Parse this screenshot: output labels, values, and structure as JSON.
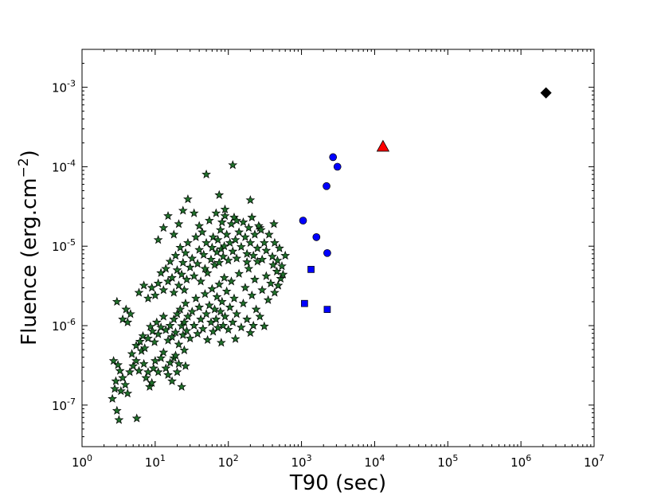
{
  "chart_data": {
    "type": "scatter",
    "title": "",
    "xlabel": "T90 (sec)",
    "ylabel": {
      "prefix": "Fluence (erg.cm",
      "sup": "−2",
      "suffix": ")"
    },
    "xscale": "log",
    "yscale": "log",
    "xlim": [
      1,
      10000000
    ],
    "ylim": [
      3e-08,
      0.003
    ],
    "grid": false,
    "legend": "none",
    "x_ticks": [
      {
        "base": "10",
        "exp": "0",
        "value": 1
      },
      {
        "base": "10",
        "exp": "1",
        "value": 10
      },
      {
        "base": "10",
        "exp": "2",
        "value": 100
      },
      {
        "base": "10",
        "exp": "3",
        "value": 1000
      },
      {
        "base": "10",
        "exp": "4",
        "value": 10000
      },
      {
        "base": "10",
        "exp": "5",
        "value": 100000
      },
      {
        "base": "10",
        "exp": "6",
        "value": 1000000
      },
      {
        "base": "10",
        "exp": "7",
        "value": 10000000
      }
    ],
    "y_ticks": [
      {
        "base": "10",
        "exp": "-7",
        "value": 1e-07
      },
      {
        "base": "10",
        "exp": "-6",
        "value": 1e-06
      },
      {
        "base": "10",
        "exp": "-5",
        "value": 1e-05
      },
      {
        "base": "10",
        "exp": "-4",
        "value": 0.0001
      },
      {
        "base": "10",
        "exp": "-3",
        "value": 0.001
      }
    ],
    "series": [
      {
        "marker": "star",
        "color": "#1f6f2a",
        "points": [
          [
            2.6,
            1.2e-07
          ],
          [
            2.8,
            1.6e-07
          ],
          [
            3.0,
            8.5e-08
          ],
          [
            3.2,
            6.5e-08
          ],
          [
            2.9,
            2e-07
          ],
          [
            3.1,
            3.2e-07
          ],
          [
            3.4,
            1.5e-07
          ],
          [
            3.6,
            2.2e-07
          ],
          [
            3.9,
            1.8e-07
          ],
          [
            4.2,
            1.4e-07
          ],
          [
            3.3,
            2.7e-07
          ],
          [
            2.7,
            3.6e-07
          ],
          [
            4.5,
            2.6e-07
          ],
          [
            5.0,
            3.1e-07
          ],
          [
            4.8,
            4.4e-07
          ],
          [
            5.5,
            3.6e-07
          ],
          [
            6.0,
            2.7e-07
          ],
          [
            5.6,
            6.8e-08
          ],
          [
            6.5,
            4.8e-07
          ],
          [
            7.0,
            3.3e-07
          ],
          [
            7.5,
            2.2e-07
          ],
          [
            8.0,
            2.6e-07
          ],
          [
            8.4,
            1.7e-07
          ],
          [
            9.0,
            1.9e-07
          ],
          [
            9.5,
            2.9e-07
          ],
          [
            10,
            3.6e-07
          ],
          [
            11,
            2.6e-07
          ],
          [
            12,
            3.9e-07
          ],
          [
            13,
            4.6e-07
          ],
          [
            14,
            2.9e-07
          ],
          [
            15,
            2.4e-07
          ],
          [
            16,
            3.4e-07
          ],
          [
            17,
            2e-07
          ],
          [
            18,
            3.9e-07
          ],
          [
            19,
            4.2e-07
          ],
          [
            20,
            2.6e-07
          ],
          [
            21,
            3.3e-07
          ],
          [
            23,
            1.7e-07
          ],
          [
            25,
            4.9e-07
          ],
          [
            26,
            3.1e-07
          ],
          [
            4.0,
            1.6e-06
          ],
          [
            4.6,
            1.4e-06
          ],
          [
            3.0,
            2e-06
          ],
          [
            3.6,
            1.2e-06
          ],
          [
            4.2,
            1.1e-06
          ],
          [
            5.5,
            5.6e-07
          ],
          [
            6.2,
            6.3e-07
          ],
          [
            6.8,
            7.4e-07
          ],
          [
            7.2,
            5.2e-07
          ],
          [
            8.0,
            6.9e-07
          ],
          [
            8.6,
            9.7e-07
          ],
          [
            9.2,
            8.5e-07
          ],
          [
            9.8,
            6.2e-07
          ],
          [
            10.5,
            1.1e-06
          ],
          [
            11,
            7.8e-07
          ],
          [
            12,
            9.5e-07
          ],
          [
            13,
            1.3e-06
          ],
          [
            14,
            8.8e-07
          ],
          [
            15,
            6.5e-07
          ],
          [
            16,
            1e-06
          ],
          [
            17,
            7.2e-07
          ],
          [
            18,
            1.2e-06
          ],
          [
            19,
            8.2e-07
          ],
          [
            20,
            1.4e-06
          ],
          [
            21,
            5.8e-07
          ],
          [
            22,
            1.6e-06
          ],
          [
            23,
            9.9e-07
          ],
          [
            24,
            7.6e-07
          ],
          [
            25,
            1.1e-06
          ],
          [
            26,
            1.9e-06
          ],
          [
            27,
            8.6e-07
          ],
          [
            28,
            1.3e-06
          ],
          [
            30,
            6.9e-07
          ],
          [
            32,
            1.5e-06
          ],
          [
            34,
            1e-06
          ],
          [
            36,
            2.2e-06
          ],
          [
            38,
            7.9e-07
          ],
          [
            40,
            1.7e-06
          ],
          [
            42,
            1.2e-06
          ],
          [
            45,
            9.1e-07
          ],
          [
            48,
            2.5e-06
          ],
          [
            50,
            1.4e-06
          ],
          [
            52,
            6.6e-07
          ],
          [
            55,
            1.8e-06
          ],
          [
            58,
            1.1e-06
          ],
          [
            60,
            2.9e-06
          ],
          [
            62,
            8.4e-07
          ],
          [
            65,
            1.6e-06
          ],
          [
            68,
            1.2e-06
          ],
          [
            70,
            2.3e-06
          ],
          [
            72,
            9.4e-07
          ],
          [
            75,
            3.3e-06
          ],
          [
            78,
            1.5e-06
          ],
          [
            80,
            6.1e-07
          ],
          [
            82,
            2e-06
          ],
          [
            85,
            1e-06
          ],
          [
            88,
            4e-06
          ],
          [
            90,
            1.3e-06
          ],
          [
            95,
            2.7e-06
          ],
          [
            100,
            8.9e-07
          ],
          [
            105,
            1.7e-06
          ],
          [
            110,
            3.6e-06
          ],
          [
            115,
            1.1e-06
          ],
          [
            120,
            2.2e-06
          ],
          [
            125,
            6.8e-07
          ],
          [
            130,
            1.4e-06
          ],
          [
            140,
            4.5e-06
          ],
          [
            150,
            9.5e-07
          ],
          [
            160,
            1.9e-06
          ],
          [
            170,
            3e-06
          ],
          [
            180,
            1.2e-06
          ],
          [
            190,
            5.2e-06
          ],
          [
            200,
            8.1e-07
          ],
          [
            210,
            2.4e-06
          ],
          [
            220,
            1e-06
          ],
          [
            230,
            3.8e-06
          ],
          [
            240,
            1.6e-06
          ],
          [
            250,
            6.4e-06
          ],
          [
            270,
            1.3e-06
          ],
          [
            290,
            2.8e-06
          ],
          [
            310,
            9.8e-07
          ],
          [
            330,
            4.2e-06
          ],
          [
            350,
            2.1e-06
          ],
          [
            380,
            3.4e-06
          ],
          [
            410,
            5.8e-06
          ],
          [
            430,
            2.6e-06
          ],
          [
            460,
            4.8e-06
          ],
          [
            480,
            3.2e-06
          ],
          [
            520,
            3.9e-06
          ],
          [
            560,
            4.4e-06
          ],
          [
            6,
            2.6e-06
          ],
          [
            7,
            3.2e-06
          ],
          [
            8,
            2.2e-06
          ],
          [
            9,
            3e-06
          ],
          [
            10,
            2.4e-06
          ],
          [
            11,
            3.4e-06
          ],
          [
            12,
            4.6e-06
          ],
          [
            13,
            2.8e-06
          ],
          [
            14,
            5.2e-06
          ],
          [
            15,
            3.6e-06
          ],
          [
            16,
            6.4e-06
          ],
          [
            17,
            4e-06
          ],
          [
            18,
            2.6e-06
          ],
          [
            19,
            7.6e-06
          ],
          [
            20,
            5e-06
          ],
          [
            21,
            3.2e-06
          ],
          [
            22,
            9.6e-06
          ],
          [
            23,
            4.4e-06
          ],
          [
            24,
            6.2e-06
          ],
          [
            25,
            2.8e-06
          ],
          [
            26,
            8.2e-06
          ],
          [
            27,
            3.8e-06
          ],
          [
            28,
            1.1e-05
          ],
          [
            30,
            5.4e-06
          ],
          [
            32,
            7e-06
          ],
          [
            34,
            4.2e-06
          ],
          [
            36,
            1.3e-05
          ],
          [
            38,
            6e-06
          ],
          [
            40,
            9e-06
          ],
          [
            42,
            3.6e-06
          ],
          [
            44,
            1.5e-05
          ],
          [
            46,
            7.8e-06
          ],
          [
            48,
            5.2e-06
          ],
          [
            50,
            1.1e-05
          ],
          [
            52,
            4.6e-06
          ],
          [
            55,
            2.1e-05
          ],
          [
            58,
            6.8e-06
          ],
          [
            60,
            9.6e-06
          ],
          [
            62,
            1.3e-05
          ],
          [
            65,
            5.8e-06
          ],
          [
            68,
            2.6e-05
          ],
          [
            70,
            8.4e-06
          ],
          [
            72,
            1.2e-05
          ],
          [
            75,
            6.2e-06
          ],
          [
            78,
            1.6e-05
          ],
          [
            80,
            9.2e-06
          ],
          [
            82,
            2e-05
          ],
          [
            85,
            7.4e-06
          ],
          [
            88,
            1e-05
          ],
          [
            90,
            2.9e-05
          ],
          [
            95,
            1.4e-05
          ],
          [
            100,
            6.6e-06
          ],
          [
            105,
            1.1e-05
          ],
          [
            110,
            1.9e-05
          ],
          [
            115,
            8.6e-06
          ],
          [
            120,
            2.3e-05
          ],
          [
            125,
            1.2e-05
          ],
          [
            130,
            7e-06
          ],
          [
            140,
            1.5e-05
          ],
          [
            150,
            9.8e-06
          ],
          [
            160,
            2e-05
          ],
          [
            170,
            1.3e-05
          ],
          [
            180,
            8e-06
          ],
          [
            190,
            1.7e-05
          ],
          [
            200,
            1.1e-05
          ],
          [
            210,
            2.3e-05
          ],
          [
            220,
            7.6e-06
          ],
          [
            230,
            1.4e-05
          ],
          [
            250,
            9.4e-06
          ],
          [
            270,
            1.7e-05
          ],
          [
            290,
            6.8e-06
          ],
          [
            310,
            1.1e-05
          ],
          [
            330,
            8.8e-06
          ],
          [
            360,
            1.4e-05
          ],
          [
            400,
            7.4e-06
          ],
          [
            430,
            1.1e-05
          ],
          [
            470,
            6.6e-06
          ],
          [
            500,
            9.4e-06
          ],
          [
            540,
            5.6e-06
          ],
          [
            600,
            7.6e-06
          ],
          [
            11,
            1.2e-05
          ],
          [
            13,
            1.7e-05
          ],
          [
            15,
            2.4e-05
          ],
          [
            18,
            1.4e-05
          ],
          [
            21,
            1.9e-05
          ],
          [
            24,
            2.8e-05
          ],
          [
            28,
            3.9e-05
          ],
          [
            34,
            2.6e-05
          ],
          [
            40,
            1.8e-05
          ],
          [
            50,
            8e-05
          ],
          [
            75,
            4.4e-05
          ],
          [
            90,
            2.4e-05
          ],
          [
            115,
            0.000105
          ],
          [
            130,
            2.1e-05
          ],
          [
            200,
            3.8e-05
          ],
          [
            260,
            1.8e-05
          ],
          [
            280,
            1.6e-05
          ],
          [
            420,
            1.9e-05
          ],
          [
            480,
            3.2e-06
          ],
          [
            180,
            6.3e-06
          ]
        ]
      },
      {
        "marker": "circle",
        "color": "#0000ff",
        "points": [
          [
            2700,
            0.000132
          ],
          [
            3100,
            0.0001
          ],
          [
            2200,
            5.7e-05
          ],
          [
            1050,
            2.1e-05
          ],
          [
            1600,
            1.3e-05
          ],
          [
            2250,
            8.2e-06
          ]
        ]
      },
      {
        "marker": "square",
        "color": "#0000ff",
        "points": [
          [
            1350,
            5.1e-06
          ],
          [
            1100,
            1.9e-06
          ],
          [
            2250,
            1.6e-06
          ]
        ]
      },
      {
        "marker": "triangle",
        "color": "#ff0000",
        "points": [
          [
            13000,
            0.00018
          ]
        ]
      },
      {
        "marker": "diamond",
        "color": "#000000",
        "points": [
          [
            2200000,
            0.00085
          ]
        ]
      }
    ]
  }
}
